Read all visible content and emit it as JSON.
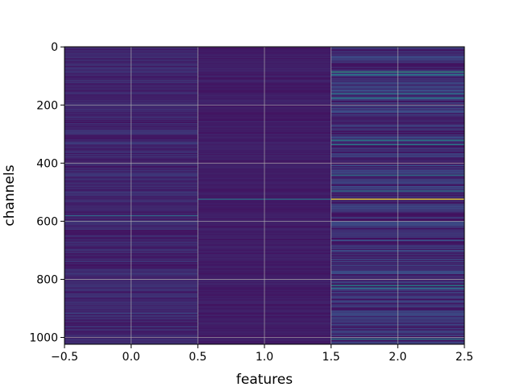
{
  "chart_data": {
    "type": "heatmap",
    "title": "",
    "xlabel": "features",
    "ylabel": "channels",
    "xlim": [
      -0.5,
      2.5
    ],
    "ylim": [
      1023.5,
      -0.5
    ],
    "y_inverted": true,
    "columns": [
      0,
      1,
      2
    ],
    "rows": 1024,
    "colormap": "viridis",
    "grid": true,
    "x_ticks": [
      -0.5,
      0.0,
      0.5,
      1.0,
      1.5,
      2.0,
      2.5
    ],
    "x_tick_labels": [
      "−0.5",
      "0.0",
      "0.5",
      "1.0",
      "1.5",
      "2.0",
      "2.5"
    ],
    "y_ticks": [
      0,
      200,
      400,
      600,
      800,
      1000
    ],
    "y_tick_labels": [
      "0",
      "200",
      "400",
      "600",
      "800",
      "1000"
    ],
    "column_background": [
      0.1,
      0.08,
      0.12
    ],
    "highlights": [
      {
        "column": 0,
        "channel": 330,
        "value": 0.25
      },
      {
        "column": 0,
        "channel": 580,
        "value": 0.35
      },
      {
        "column": 0,
        "channel": 915,
        "value": 0.22
      },
      {
        "column": 1,
        "channel": 523,
        "value": 0.4
      },
      {
        "column": 2,
        "channel": 523,
        "value": 1.0
      },
      {
        "column": 2,
        "channel": 85,
        "value": 0.55
      },
      {
        "column": 2,
        "channel": 95,
        "value": 0.45
      },
      {
        "column": 2,
        "channel": 160,
        "value": 0.4
      },
      {
        "column": 2,
        "channel": 175,
        "value": 0.45
      },
      {
        "column": 2,
        "channel": 320,
        "value": 0.5
      },
      {
        "column": 2,
        "channel": 335,
        "value": 0.45
      },
      {
        "column": 2,
        "channel": 440,
        "value": 0.4
      },
      {
        "column": 2,
        "channel": 495,
        "value": 0.4
      },
      {
        "column": 2,
        "channel": 820,
        "value": 0.5
      },
      {
        "column": 2,
        "channel": 830,
        "value": 0.4
      },
      {
        "column": 2,
        "channel": 1005,
        "value": 0.45
      }
    ]
  }
}
